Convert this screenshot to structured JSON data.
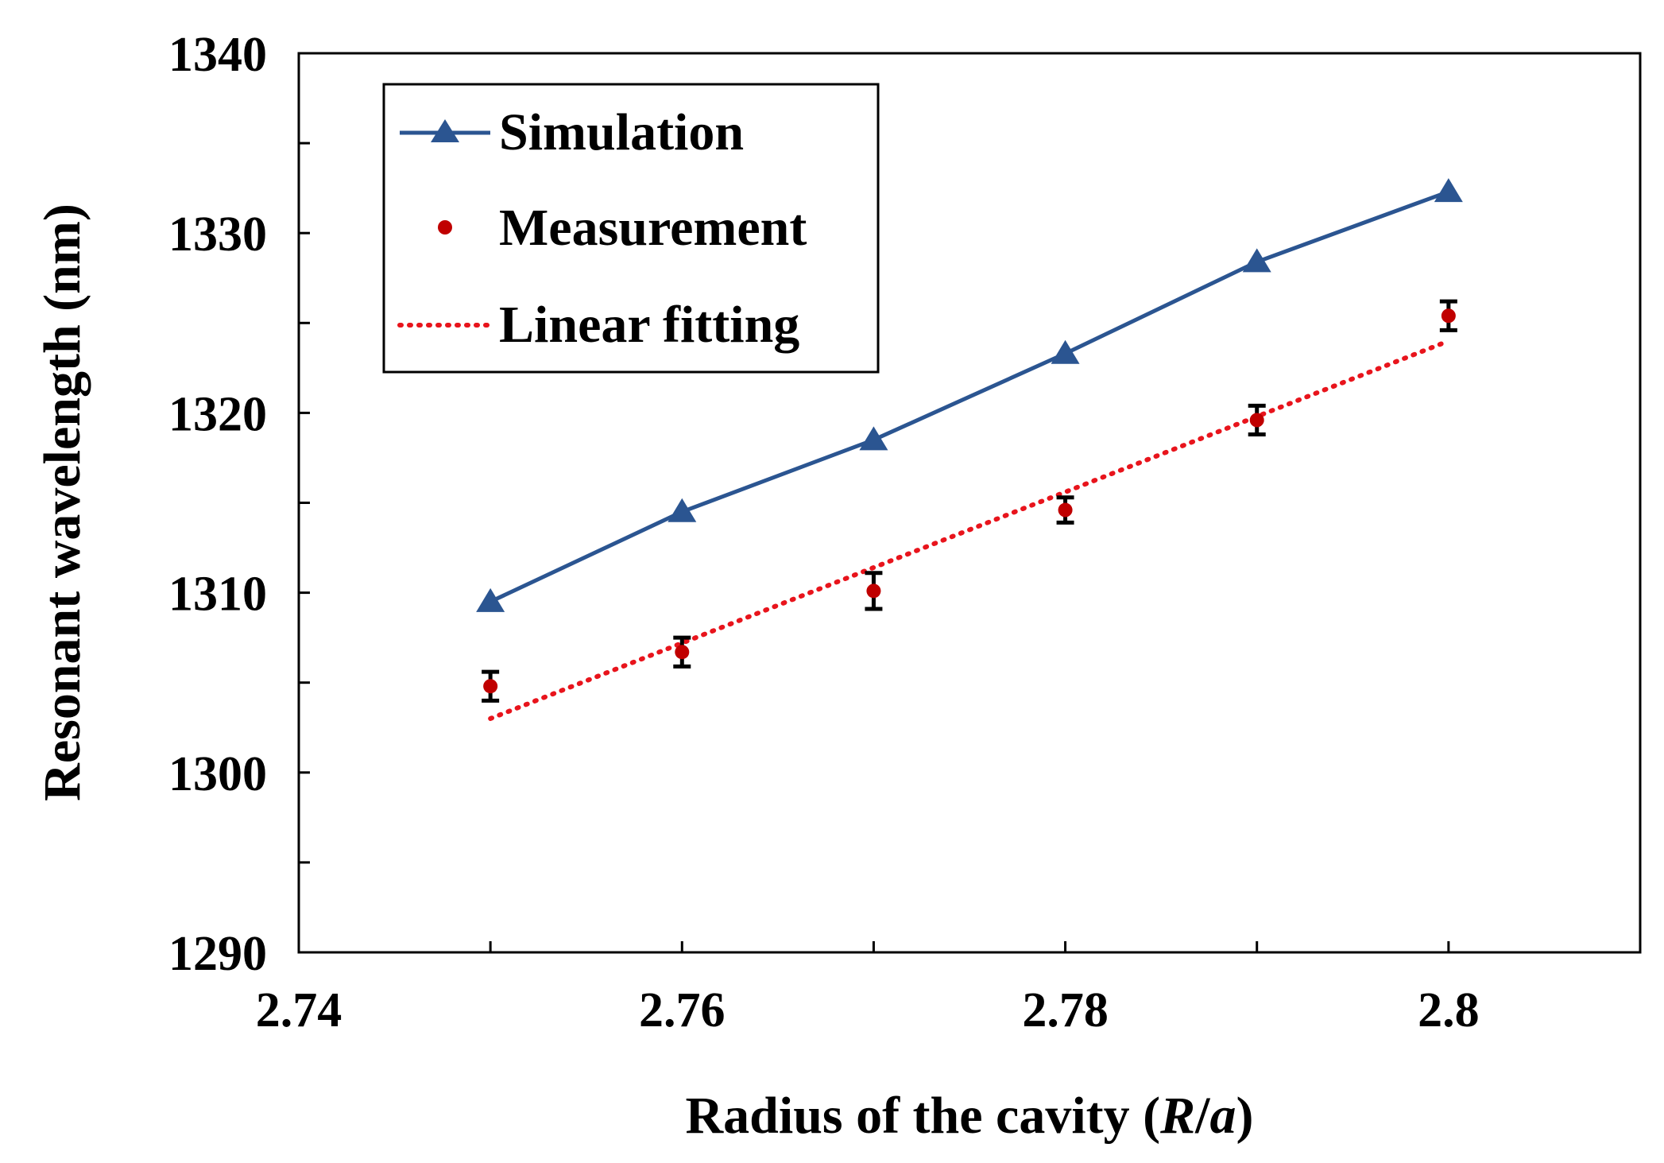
{
  "chart_data": {
    "type": "line",
    "xlabel_main": "Radius of the cavity (",
    "xlabel_R": "R",
    "xlabel_slash": "/",
    "xlabel_a": "a",
    "xlabel_close": ")",
    "ylabel": "Resonant wavelength (nm)",
    "xlim": [
      2.74,
      2.81
    ],
    "ylim": [
      1290,
      1340
    ],
    "x_ticks": [
      "2.74",
      "2.76",
      "2.78",
      "2.8"
    ],
    "y_ticks": [
      "1290",
      "1300",
      "1310",
      "1320",
      "1330",
      "1340"
    ],
    "grid": false,
    "legend_position": "top-left",
    "series": [
      {
        "name": "Simulation",
        "style": "line-triangle",
        "color": "#2B5591",
        "x": [
          2.75,
          2.76,
          2.77,
          2.78,
          2.79,
          2.8
        ],
        "y": [
          1309.5,
          1314.5,
          1318.5,
          1323.3,
          1328.4,
          1332.3
        ]
      },
      {
        "name": "Measurement",
        "style": "point-errorbar",
        "color": "#C00000",
        "errorbar_color": "#000000",
        "x": [
          2.75,
          2.76,
          2.77,
          2.78,
          2.79,
          2.8
        ],
        "y": [
          1304.8,
          1306.7,
          1310.1,
          1314.6,
          1319.6,
          1325.4
        ],
        "error": [
          0.8,
          0.8,
          1.0,
          0.7,
          0.8,
          0.8
        ]
      },
      {
        "name": "Linear fitting",
        "style": "dotted-line",
        "color": "#E8141C",
        "x": [
          2.75,
          2.8
        ],
        "y": [
          1303.0,
          1324.0
        ]
      }
    ]
  }
}
